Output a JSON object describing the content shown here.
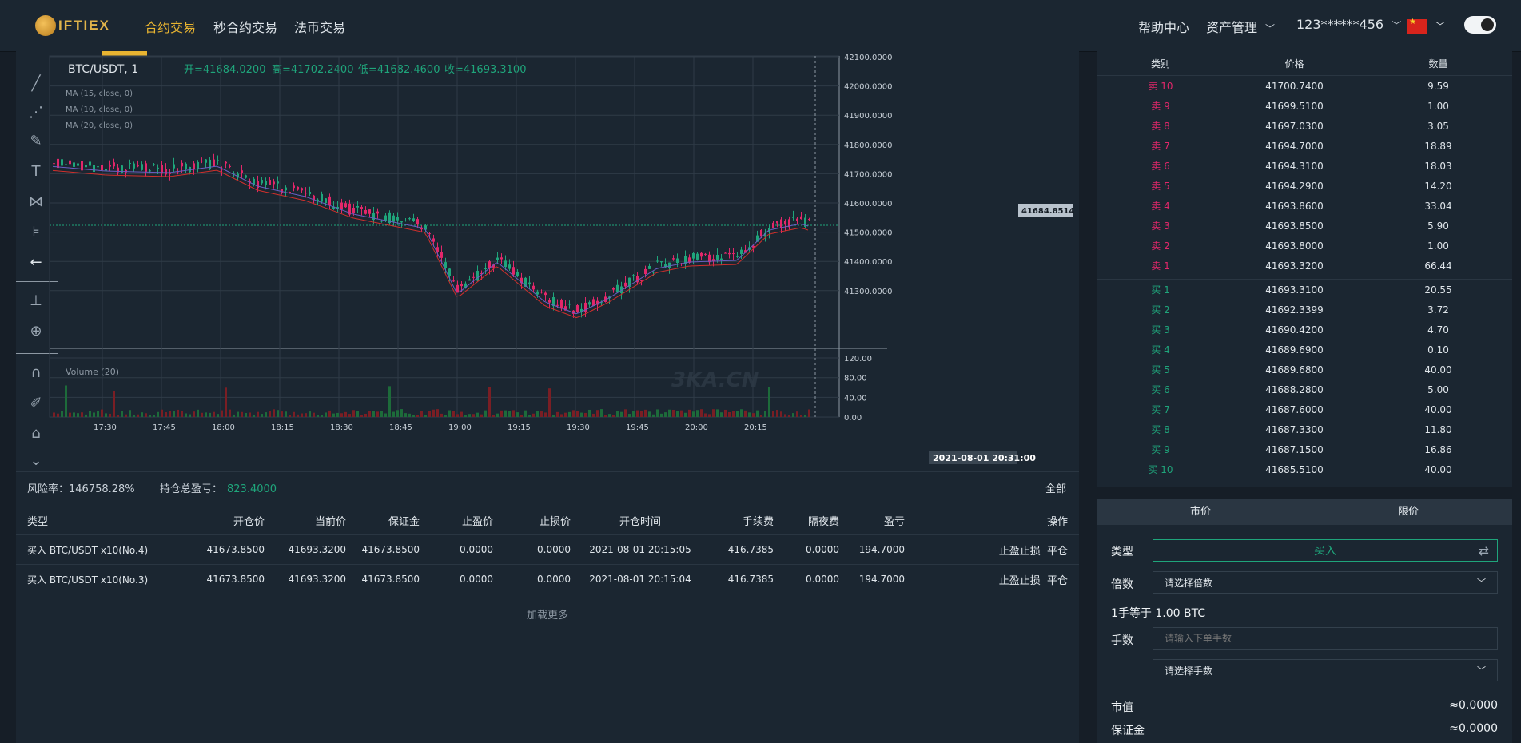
{
  "nav": {
    "logo_text": "IFTIEX",
    "items": [
      "合约交易",
      "秒合约交易",
      "法币交易"
    ],
    "help": "帮助中心",
    "assets": "资产管理",
    "user": "123******456"
  },
  "chart": {
    "symbol": "BTC/USDT, 1",
    "open_label": "开=41684.0200",
    "high_label": "高=41702.2400",
    "low_label": "低=41682.4600",
    "close_label": "收=41693.3100",
    "ma_labels": [
      "MA (15, close, 0)",
      "MA (10, close, 0)",
      "MA (20, close, 0)"
    ],
    "volume_label": "Volume (20)",
    "watermark": "3KA.CN",
    "price_ticks": [
      "42100.0000",
      "42000.0000",
      "41900.0000",
      "41800.0000",
      "41700.0000",
      "41600.0000",
      "41500.0000",
      "41400.0000",
      "41300.0000"
    ],
    "current_price": "41684.8514",
    "volume_ticks": [
      "120.00",
      "80.00",
      "40.00",
      "0.00"
    ],
    "time_ticks": [
      "17:30",
      "17:45",
      "18:00",
      "18:15",
      "18:30",
      "18:45",
      "19:00",
      "19:15",
      "19:30",
      "19:45",
      "20:00",
      "20:15"
    ],
    "crosshair_time": "2021-08-01 20:31:00"
  },
  "positions": {
    "risk": "风险率：146758.28%",
    "pnl_label": "持仓总盈亏：",
    "pnl_value": "823.4000",
    "all": "全部",
    "headers": [
      "类型",
      "开仓价",
      "当前价",
      "保证金",
      "止盈价",
      "止损价",
      "开仓时间",
      "手续费",
      "隔夜费",
      "盈亏",
      "操作"
    ],
    "rows": [
      {
        "type": "买入 BTC/USDT x10(No.4)",
        "open": "41673.8500",
        "current": "41693.3200",
        "margin": "41673.8500",
        "tp": "0.0000",
        "sl": "0.0000",
        "time": "2021-08-01 20:15:05",
        "fee": "416.7385",
        "overnight": "0.0000",
        "pnl": "194.7000",
        "op1": "止盈止损",
        "op2": "平仓"
      },
      {
        "type": "买入 BTC/USDT x10(No.3)",
        "open": "41673.8500",
        "current": "41693.3200",
        "margin": "41673.8500",
        "tp": "0.0000",
        "sl": "0.0000",
        "time": "2021-08-01 20:15:04",
        "fee": "416.7385",
        "overnight": "0.0000",
        "pnl": "194.7000",
        "op1": "止盈止损",
        "op2": "平仓"
      }
    ],
    "load_more": "加载更多"
  },
  "orderbook": {
    "headers": [
      "类别",
      "价格",
      "数量"
    ],
    "sells": [
      {
        "label": "卖 10",
        "price": "41700.7400",
        "qty": "9.59"
      },
      {
        "label": "卖 9",
        "price": "41699.5100",
        "qty": "1.00"
      },
      {
        "label": "卖 8",
        "price": "41697.0300",
        "qty": "3.05"
      },
      {
        "label": "卖 7",
        "price": "41694.7000",
        "qty": "18.89"
      },
      {
        "label": "卖 6",
        "price": "41694.3100",
        "qty": "18.03"
      },
      {
        "label": "卖 5",
        "price": "41694.2900",
        "qty": "14.20"
      },
      {
        "label": "卖 4",
        "price": "41693.8600",
        "qty": "33.04"
      },
      {
        "label": "卖 3",
        "price": "41693.8500",
        "qty": "5.90"
      },
      {
        "label": "卖 2",
        "price": "41693.8000",
        "qty": "1.00"
      },
      {
        "label": "卖 1",
        "price": "41693.3200",
        "qty": "66.44"
      }
    ],
    "buys": [
      {
        "label": "买 1",
        "price": "41693.3100",
        "qty": "20.55"
      },
      {
        "label": "买 2",
        "price": "41692.3399",
        "qty": "3.72"
      },
      {
        "label": "买 3",
        "price": "41690.4200",
        "qty": "4.70"
      },
      {
        "label": "买 4",
        "price": "41689.6900",
        "qty": "0.10"
      },
      {
        "label": "买 5",
        "price": "41689.6800",
        "qty": "40.00"
      },
      {
        "label": "买 6",
        "price": "41688.2800",
        "qty": "5.00"
      },
      {
        "label": "买 7",
        "price": "41687.6000",
        "qty": "40.00"
      },
      {
        "label": "买 8",
        "price": "41687.3300",
        "qty": "11.80"
      },
      {
        "label": "买 9",
        "price": "41687.1500",
        "qty": "16.86"
      },
      {
        "label": "买 10",
        "price": "41685.5100",
        "qty": "40.00"
      }
    ]
  },
  "order": {
    "tab_market": "市价",
    "tab_limit": "限价",
    "type_label": "类型",
    "type_value": "买入",
    "leverage_label": "倍数",
    "leverage_placeholder": "请选择倍数",
    "lot_info": "1手等于 1.00 BTC",
    "lots_label": "手数",
    "lots_placeholder": "请输入下单手数",
    "lots_select": "请选择手数",
    "market_value_label": "市值",
    "market_value": "≈0.0000",
    "margin_label": "保证金",
    "margin_value": "≈0.0000"
  },
  "colors": {
    "up": "#1fa57b",
    "down": "#e2276a",
    "accent": "#e8b431"
  }
}
